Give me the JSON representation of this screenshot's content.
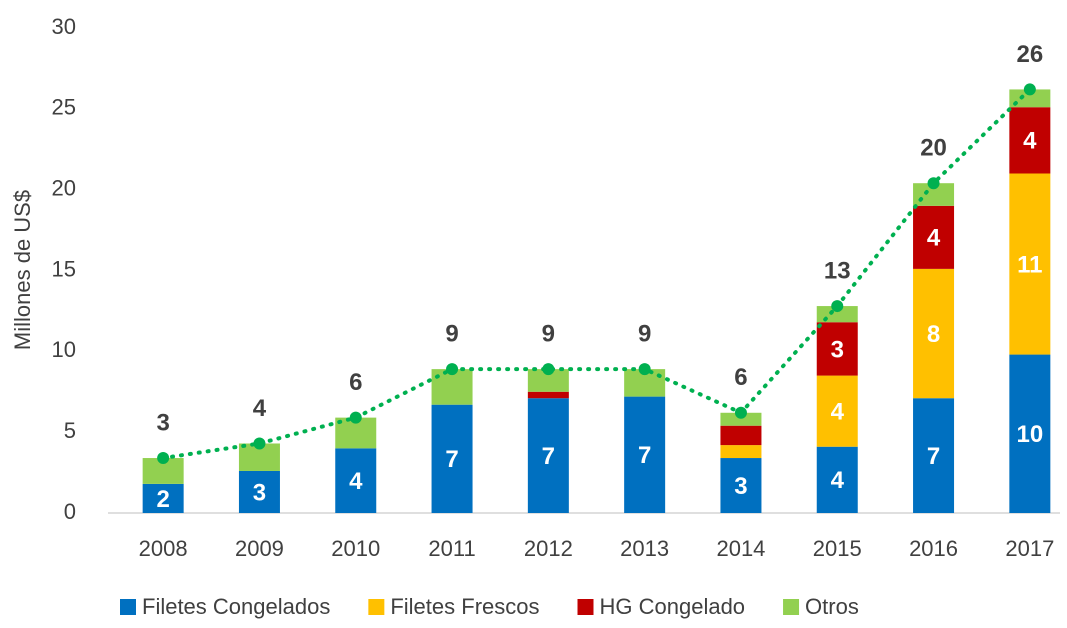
{
  "chart_data": {
    "type": "stacked-bar-line",
    "y_label": "Millones de US$",
    "categories": [
      "2008",
      "2009",
      "2010",
      "2011",
      "2012",
      "2013",
      "2014",
      "2015",
      "2016",
      "2017"
    ],
    "ylim": [
      0,
      30
    ],
    "yticks": [
      0,
      5,
      10,
      15,
      20,
      25,
      30
    ],
    "grid": false,
    "legend": "bottom",
    "series": [
      {
        "name": "Filetes Congelados",
        "color": "#0070c0",
        "values": [
          1.8,
          2.6,
          4.0,
          6.7,
          7.1,
          7.2,
          3.4,
          4.1,
          7.1,
          9.8
        ],
        "value_labels": [
          "2",
          "3",
          "4",
          "7",
          "7",
          "7",
          "3",
          "4",
          "7",
          "10"
        ]
      },
      {
        "name": "Filetes Frescos",
        "color": "#ffc000",
        "values": [
          0,
          0,
          0,
          0,
          0,
          0,
          0.8,
          4.4,
          8.0,
          11.2
        ],
        "value_labels": [
          null,
          null,
          null,
          null,
          null,
          null,
          null,
          "4",
          "8",
          "11"
        ]
      },
      {
        "name": "HG Congelado",
        "color": "#c00000",
        "values": [
          0,
          0,
          0,
          0,
          0.4,
          0,
          1.2,
          3.3,
          3.9,
          4.1
        ],
        "value_labels": [
          null,
          null,
          null,
          null,
          null,
          null,
          null,
          "3",
          "4",
          "4"
        ]
      },
      {
        "name": "Otros",
        "color": "#92d050",
        "values": [
          1.6,
          1.7,
          1.9,
          2.2,
          1.4,
          1.7,
          0.8,
          1.0,
          1.4,
          1.1
        ]
      }
    ],
    "line": {
      "color": "#00b050",
      "values": [
        3.4,
        4.3,
        5.9,
        8.9,
        8.9,
        8.9,
        6.2,
        12.8,
        20.4,
        26.2
      ],
      "value_labels": [
        "3",
        "4",
        "6",
        "9",
        "9",
        "9",
        "6",
        "13",
        "20",
        "26"
      ]
    }
  }
}
